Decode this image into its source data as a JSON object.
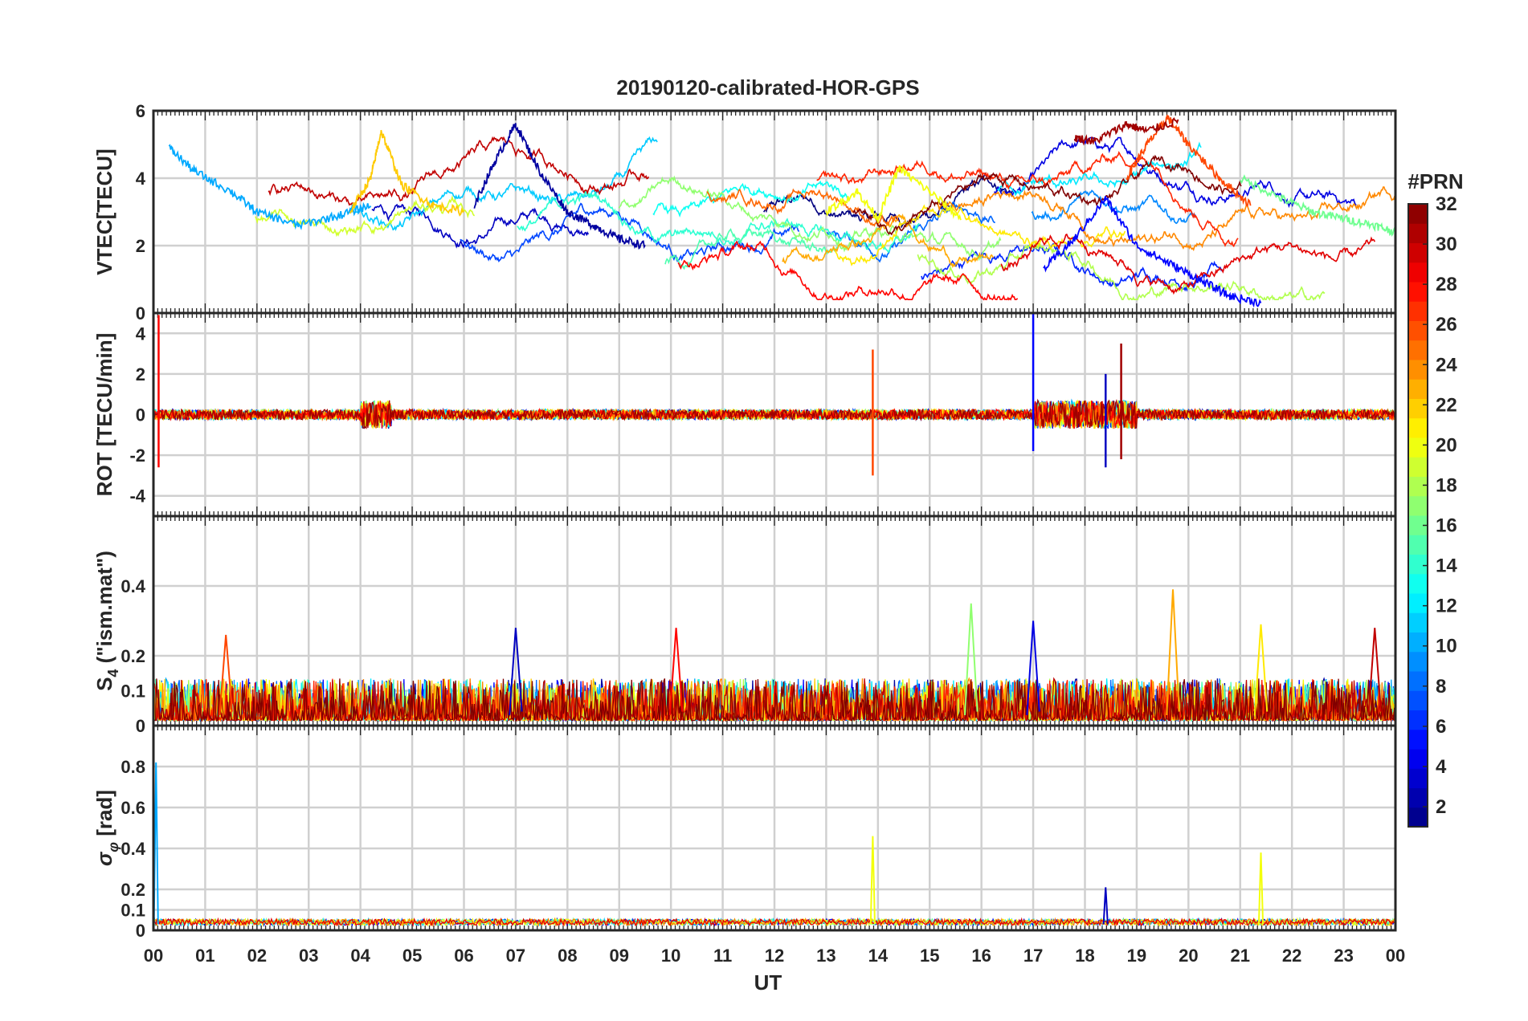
{
  "title": "20190120-calibrated-HOR-GPS",
  "xlabel": "UT",
  "x_ticks": [
    "00",
    "01",
    "02",
    "03",
    "04",
    "05",
    "06",
    "07",
    "08",
    "09",
    "10",
    "11",
    "12",
    "13",
    "14",
    "15",
    "16",
    "17",
    "18",
    "19",
    "20",
    "21",
    "22",
    "23",
    "00"
  ],
  "colorbar": {
    "label": "#PRN",
    "min": 1,
    "max": 32,
    "ticks": [
      "2",
      "4",
      "6",
      "8",
      "10",
      "12",
      "14",
      "16",
      "18",
      "20",
      "22",
      "24",
      "26",
      "28",
      "30",
      "32"
    ],
    "colormap": "jet"
  },
  "chart_data": [
    {
      "type": "line",
      "panel": "VTEC",
      "ylabel": "VTEC[TECU]",
      "ylim": [
        0,
        6
      ],
      "yticks": [
        0,
        2,
        4,
        6
      ],
      "xlim": [
        0,
        24
      ],
      "series_note": "one trace per visible PRN; values are approximate readings",
      "series": [
        {
          "name": "PRN 2",
          "x": [
            6.2,
            6.6,
            7.0,
            7.5,
            8.0,
            8.5,
            9.0,
            9.5
          ],
          "y": [
            3.2,
            4.5,
            5.6,
            4.1,
            3.0,
            2.6,
            2.2,
            2.0
          ]
        },
        {
          "name": "PRN 5",
          "x": [
            17.2,
            17.8,
            18.4,
            19.0,
            19.6,
            20.2,
            20.8,
            21.4
          ],
          "y": [
            1.3,
            2.2,
            3.4,
            2.0,
            1.5,
            1.0,
            0.5,
            0.3
          ]
        },
        {
          "name": "PRN 10",
          "x": [
            0.3,
            0.8,
            1.5,
            2.0,
            2.8,
            3.6,
            4.2
          ],
          "y": [
            4.9,
            4.2,
            3.6,
            3.0,
            2.6,
            2.9,
            3.2
          ]
        },
        {
          "name": "PRN 16",
          "x": [
            21.0,
            21.8,
            22.4,
            23.0,
            23.6,
            24.0
          ],
          "y": [
            4.0,
            3.4,
            3.0,
            2.8,
            2.6,
            2.4
          ]
        },
        {
          "name": "PRN 20",
          "x": [
            13.0,
            13.6,
            14.0,
            14.4,
            15.0,
            15.6
          ],
          "y": [
            3.0,
            3.6,
            2.8,
            4.3,
            3.6,
            2.8
          ]
        },
        {
          "name": "PRN 22",
          "x": [
            3.8,
            4.2,
            4.4,
            4.8,
            5.4,
            6.0
          ],
          "y": [
            3.0,
            4.0,
            5.4,
            3.8,
            3.2,
            3.0
          ]
        },
        {
          "name": "PRN 26",
          "x": [
            18.8,
            19.2,
            19.6,
            20.0,
            20.6,
            21.2
          ],
          "y": [
            4.0,
            5.0,
            5.8,
            5.0,
            4.0,
            3.2
          ]
        },
        {
          "name": "PRN 31",
          "x": [
            17.8,
            18.2,
            18.8,
            19.2,
            19.8
          ],
          "y": [
            5.2,
            5.1,
            5.6,
            5.4,
            5.7
          ]
        }
      ]
    },
    {
      "type": "line",
      "panel": "ROT",
      "ylabel": "ROT [TECU/min]",
      "ylim": [
        -5,
        5
      ],
      "yticks": [
        -4,
        -2,
        0,
        2,
        4
      ],
      "xlim": [
        0,
        24
      ],
      "features": [
        {
          "x": 0.1,
          "y_min": -2.6,
          "y_max": 4.9
        },
        {
          "x": 13.9,
          "y_min": -3.0,
          "y_max": 3.2
        },
        {
          "x": 17.0,
          "y_min": -1.8,
          "y_max": 5.0
        },
        {
          "x": 18.4,
          "y_min": -2.6,
          "y_max": 2.0
        },
        {
          "x": 18.7,
          "y_min": -2.2,
          "y_max": 3.5
        }
      ]
    },
    {
      "type": "line",
      "panel": "S4",
      "ylabel": "S_4 (\"ism.mat\")",
      "ylim": [
        0,
        0.6
      ],
      "yticks": [
        0,
        0.1,
        0.2,
        0.4
      ],
      "xlim": [
        0,
        24
      ],
      "peaks": [
        {
          "x": 1.4,
          "y": 0.26
        },
        {
          "x": 7.0,
          "y": 0.28
        },
        {
          "x": 10.1,
          "y": 0.28
        },
        {
          "x": 15.8,
          "y": 0.35
        },
        {
          "x": 17.0,
          "y": 0.3
        },
        {
          "x": 19.7,
          "y": 0.39
        },
        {
          "x": 21.4,
          "y": 0.29
        },
        {
          "x": 23.6,
          "y": 0.28
        }
      ]
    },
    {
      "type": "line",
      "panel": "sigma_phi",
      "ylabel": "σ_φ [rad]",
      "ylim": [
        0,
        1
      ],
      "yticks": [
        0,
        0.1,
        0.2,
        0.4,
        0.6,
        0.8
      ],
      "xlim": [
        0,
        24
      ],
      "peaks": [
        {
          "x": 0.05,
          "y": 0.82
        },
        {
          "x": 13.9,
          "y": 0.46
        },
        {
          "x": 18.4,
          "y": 0.21
        },
        {
          "x": 21.4,
          "y": 0.38
        }
      ]
    }
  ]
}
